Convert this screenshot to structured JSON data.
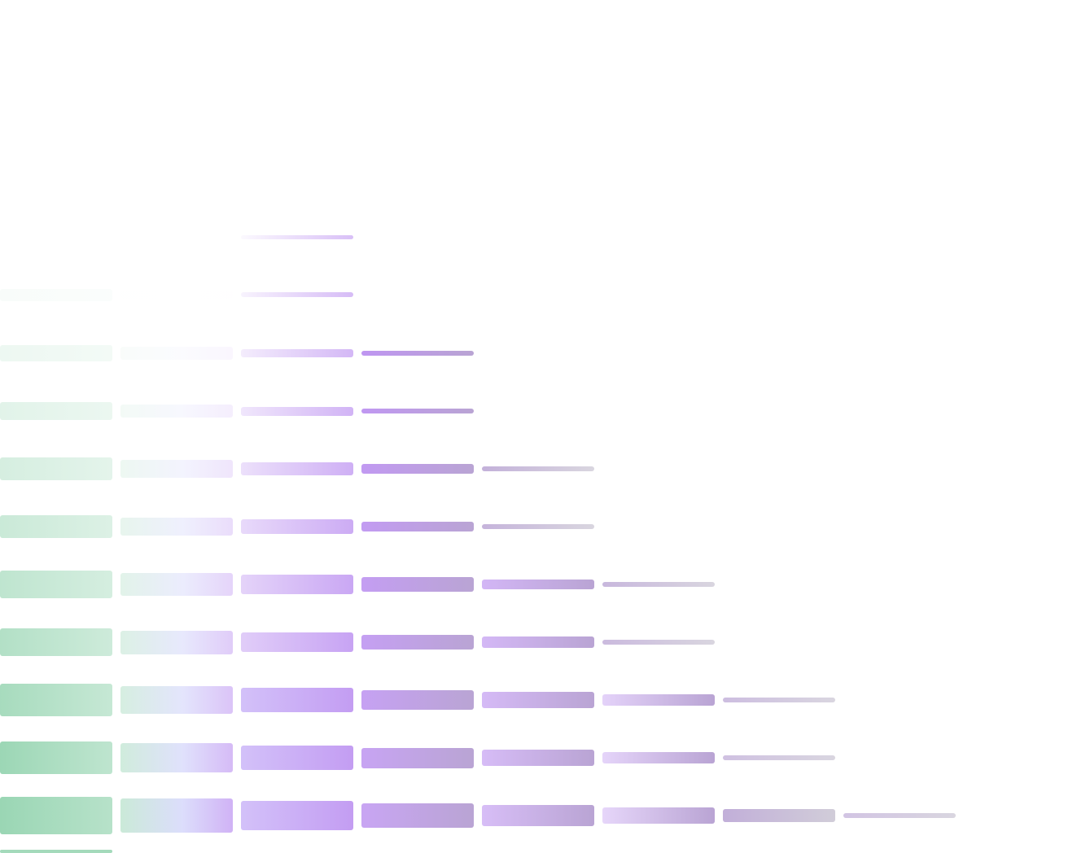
{
  "background": "#ffffff",
  "palette": {
    "green": "#9ad6b4",
    "lavender": "#d6d8fb",
    "violet": "#b98cf0",
    "mauve": "#ad94cc",
    "grey": "#c9c4d2"
  }
}
